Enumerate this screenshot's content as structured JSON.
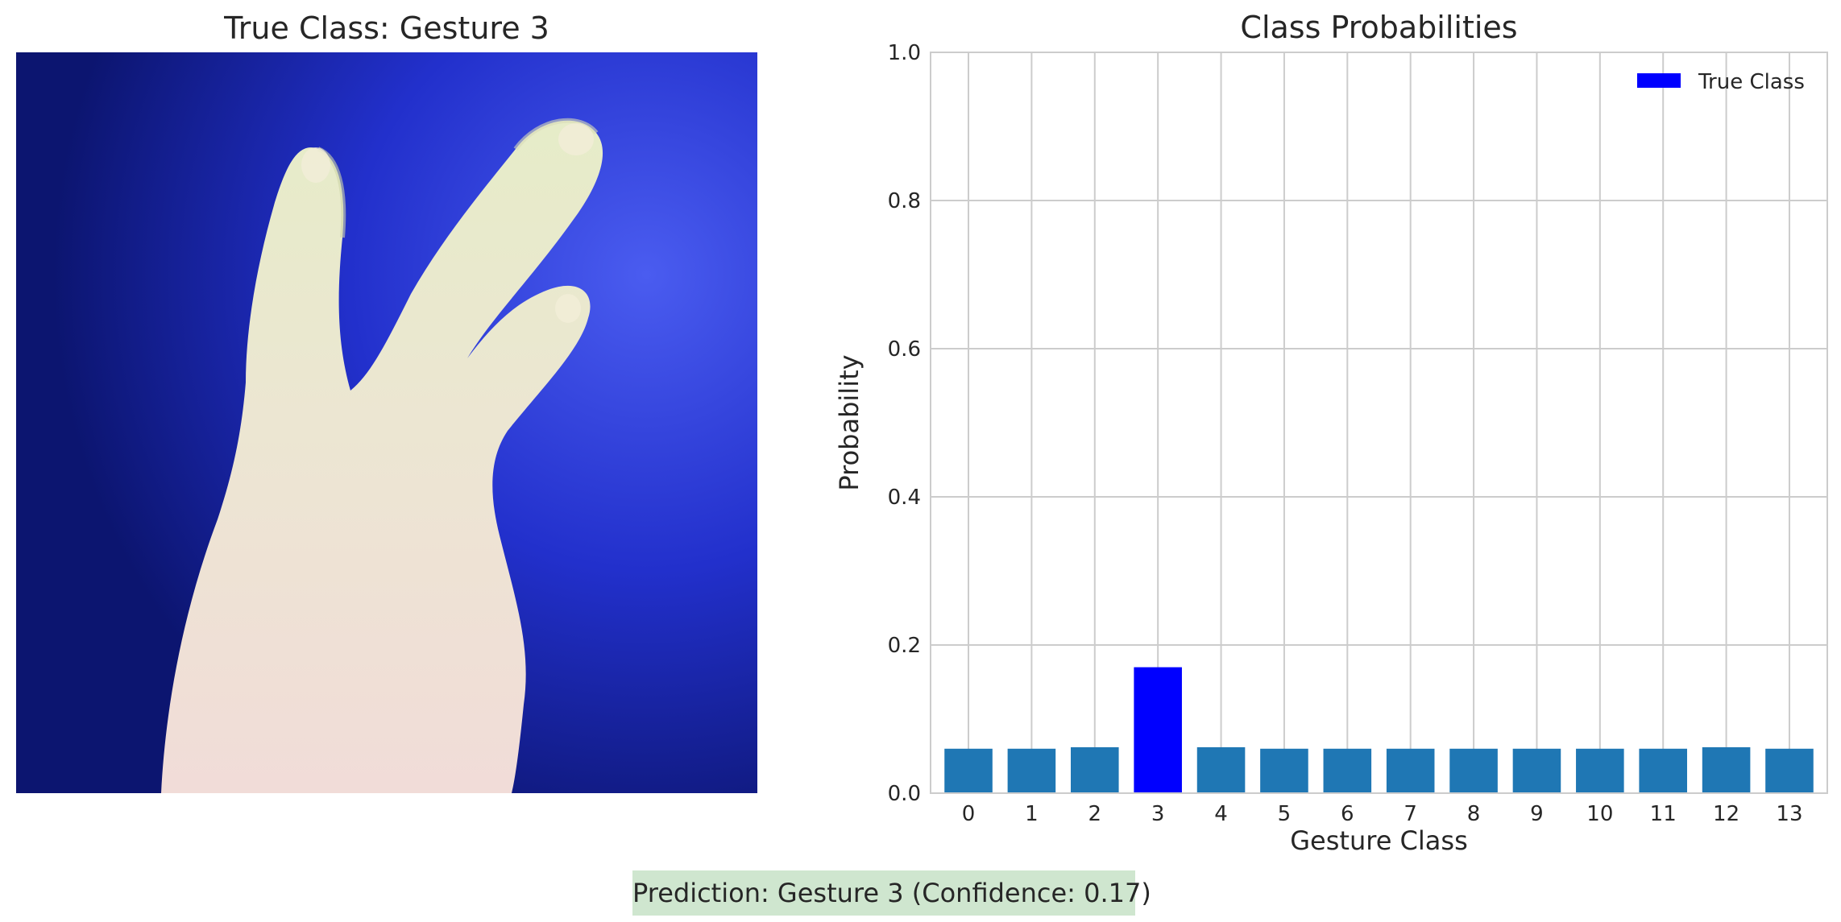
{
  "left_panel": {
    "title": "True Class: Gesture 3"
  },
  "prediction": {
    "text": "Prediction: Gesture 3 (Confidence: 0.17)"
  },
  "colors": {
    "bar_default": "#1f77b4",
    "bar_true_class": "#0000ff",
    "prediction_box": "#cfe6cf",
    "grid": "#cccccc"
  },
  "chart_data": {
    "type": "bar",
    "title": "Class Probabilities",
    "xlabel": "Gesture Class",
    "ylabel": "Probability",
    "ylim": [
      0,
      1.0
    ],
    "yticks": [
      "0.0",
      "0.2",
      "0.4",
      "0.6",
      "0.8",
      "1.0"
    ],
    "categories": [
      "0",
      "1",
      "2",
      "3",
      "4",
      "5",
      "6",
      "7",
      "8",
      "9",
      "10",
      "11",
      "12",
      "13"
    ],
    "values": [
      0.06,
      0.06,
      0.062,
      0.17,
      0.062,
      0.06,
      0.06,
      0.06,
      0.06,
      0.06,
      0.06,
      0.06,
      0.062,
      0.06
    ],
    "highlight_index": 3,
    "grid": true,
    "legend": {
      "placement": "top-right",
      "entries": [
        {
          "label": "True Class",
          "color": "#0000ff"
        }
      ]
    }
  }
}
